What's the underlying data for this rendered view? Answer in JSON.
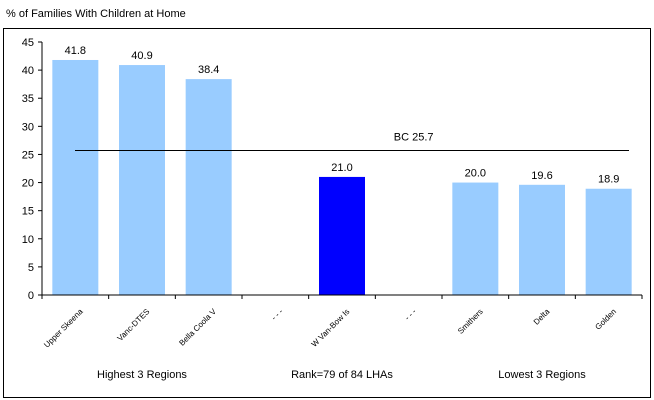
{
  "title": "% of Families With Children at Home",
  "colors": {
    "bar": "#99ccff",
    "highlight": "#0000ff",
    "axis": "#000000",
    "reference_line": "#000000"
  },
  "chart_data": {
    "type": "bar",
    "title": "% of Families With Children at Home",
    "xlabel": "",
    "ylabel": "",
    "ylim": [
      0,
      45
    ],
    "yticks": [
      0,
      5,
      10,
      15,
      20,
      25,
      30,
      35,
      40,
      45
    ],
    "grid": false,
    "legend": "none",
    "categories": [
      "Upper Skeena",
      "Vanc-DTES",
      "Bella Coola V",
      "- - -",
      "W Van-Bow Is",
      "- - -",
      "Smithers",
      "Delta",
      "Golden"
    ],
    "values": [
      41.8,
      40.9,
      38.4,
      null,
      21.0,
      null,
      20.0,
      19.6,
      18.9
    ],
    "data_labels": [
      "41.8",
      "40.9",
      "38.4",
      "",
      "21.0",
      "",
      "20.0",
      "19.6",
      "18.9"
    ],
    "highlight_category": "W Van-Bow Is",
    "reference_line": {
      "label": "BC 25.7",
      "value": 25.7
    },
    "group_labels": [
      "Highest 3 Regions",
      "Rank=79 of 84 LHAs",
      "Lowest 3 Regions"
    ]
  }
}
